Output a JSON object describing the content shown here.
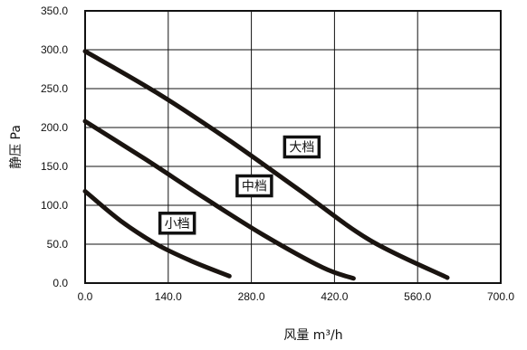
{
  "chart_data": {
    "type": "line",
    "xlabel": "风量 m³/h",
    "ylabel": "静压 Pa",
    "xlim": [
      0,
      700
    ],
    "ylim": [
      0,
      350
    ],
    "x_ticks": [
      "0.0",
      "140.0",
      "280.0",
      "420.0",
      "560.0",
      "700.0"
    ],
    "y_ticks": [
      "0.0",
      "50.0",
      "100.0",
      "150.0",
      "200.0",
      "250.0",
      "300.0",
      "350.0"
    ],
    "grid": true,
    "series": [
      {
        "name": "大档",
        "x": [
          0,
          120,
          240,
          360,
          480,
          610
        ],
        "y": [
          298,
          245,
          185,
          120,
          55,
          7
        ]
      },
      {
        "name": "中档",
        "x": [
          0,
          100,
          200,
          300,
          400,
          452
        ],
        "y": [
          208,
          160,
          110,
          62,
          20,
          6
        ]
      },
      {
        "name": "小档",
        "x": [
          0,
          60,
          120,
          180,
          243
        ],
        "y": [
          118,
          80,
          50,
          28,
          9
        ]
      }
    ],
    "annotations": [
      {
        "text": "大档",
        "x": 365,
        "y": 175
      },
      {
        "text": "中档",
        "x": 285,
        "y": 125
      },
      {
        "text": "小档",
        "x": 155,
        "y": 77
      }
    ]
  }
}
